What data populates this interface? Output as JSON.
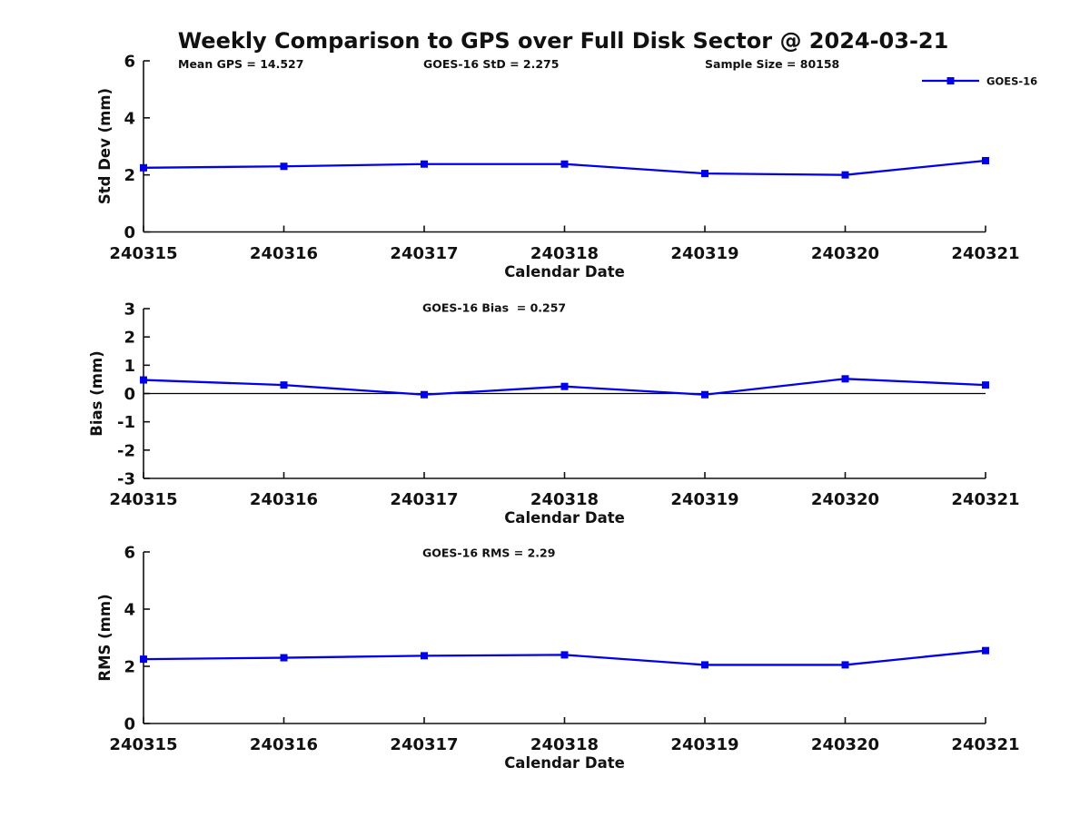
{
  "figure": {
    "title": "Weekly Comparison to GPS over Full Disk Sector @ 2024-03-21",
    "background": "#ffffff",
    "text_color": "#111111"
  },
  "legend": {
    "label": "GOES-16",
    "position": "top-right",
    "marker": "square"
  },
  "series_color": "#0000ee",
  "chart_data": [
    {
      "type": "line",
      "ylabel": "Std Dev (mm)",
      "xlabel": "Calendar Date",
      "categories": [
        "240315",
        "240316",
        "240317",
        "240318",
        "240319",
        "240320",
        "240321"
      ],
      "series": [
        {
          "name": "GOES-16",
          "color": "#0000ee",
          "marker": "square",
          "values": [
            2.25,
            2.3,
            2.38,
            2.38,
            2.05,
            2.0,
            2.5
          ]
        }
      ],
      "ylim": [
        0,
        6
      ],
      "yticks": [
        0,
        2,
        4,
        6
      ],
      "grid": false,
      "zero_line": false,
      "legend_position": "top-right",
      "annotations": [
        "Mean GPS = 14.527",
        "GOES-16 StD = 2.275",
        "Sample Size = 80158"
      ]
    },
    {
      "type": "line",
      "ylabel": "Bias (mm)",
      "xlabel": "Calendar Date",
      "categories": [
        "240315",
        "240316",
        "240317",
        "240318",
        "240319",
        "240320",
        "240321"
      ],
      "series": [
        {
          "name": "GOES-16",
          "color": "#0000ee",
          "marker": "square",
          "values": [
            0.48,
            0.3,
            -0.04,
            0.25,
            -0.04,
            0.52,
            0.3
          ]
        }
      ],
      "ylim": [
        -3,
        3
      ],
      "yticks": [
        -3,
        -2,
        -1,
        0,
        1,
        2,
        3
      ],
      "grid": false,
      "zero_line": true,
      "legend_position": "none",
      "annotations": [
        "GOES-16 Bias  = 0.257"
      ]
    },
    {
      "type": "line",
      "ylabel": "RMS (mm)",
      "xlabel": "Calendar Date",
      "categories": [
        "240315",
        "240316",
        "240317",
        "240318",
        "240319",
        "240320",
        "240321"
      ],
      "series": [
        {
          "name": "GOES-16",
          "color": "#0000ee",
          "marker": "square",
          "values": [
            2.25,
            2.3,
            2.37,
            2.4,
            2.05,
            2.05,
            2.55
          ]
        }
      ],
      "ylim": [
        0,
        6
      ],
      "yticks": [
        0,
        2,
        4,
        6
      ],
      "grid": false,
      "zero_line": false,
      "legend_position": "none",
      "annotations": [
        "GOES-16 RMS = 2.29"
      ]
    }
  ]
}
